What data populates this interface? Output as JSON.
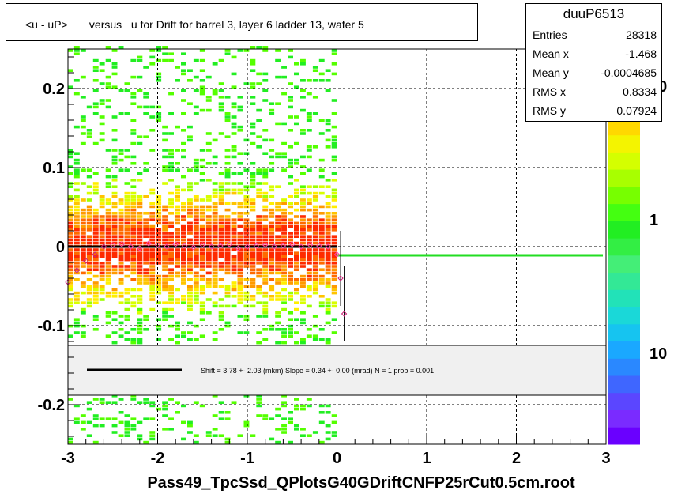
{
  "title": "<u - uP>       versus   u for Drift for barrel 3, layer 6 ladder 13, wafer 5",
  "stats": {
    "name": "duuP6513",
    "rows": [
      {
        "label": "Entries",
        "value": "28318"
      },
      {
        "label": "Mean x",
        "value": "-1.468"
      },
      {
        "label": "Mean y",
        "value": "-0.0004685"
      },
      {
        "label": "RMS x",
        "value": "0.8334"
      },
      {
        "label": "RMS y",
        "value": "0.07924"
      }
    ]
  },
  "fit_legend": "Shift =     3.78 +- 2.03 (mkm) Slope =     0.34 +- 0.00 (mrad)  N = 1 prob = 0.001",
  "xlabel": "Pass49_TpcSsd_QPlotsG40GDriftCNFP25rCut0.5cm.root",
  "colors": {
    "profile_line": "#000000",
    "fit_line": "#22dd22",
    "marker": "#ff44aa"
  },
  "chart_data": {
    "type": "heatmap",
    "xlim": [
      -3,
      3
    ],
    "ylim": [
      -0.25,
      0.25
    ],
    "x_ticks": [
      "-3",
      "-2",
      "-1",
      "0",
      "1",
      "2",
      "3"
    ],
    "y_ticks": [
      "0.2",
      "0.1",
      "0",
      "-0.1",
      "-0.2"
    ],
    "grid": true,
    "populated_x_range": [
      -3,
      0
    ],
    "z_scale": "log",
    "z_tick_labels": [
      "10",
      "1",
      "10"
    ],
    "profile": {
      "x": [
        -3.0,
        -2.9,
        -2.8,
        -2.7,
        -2.6,
        -2.5,
        -2.4,
        -2.3,
        -2.2,
        -2.1,
        -2.0,
        -1.9,
        -1.8,
        -1.7,
        -1.6,
        -1.5,
        -1.4,
        -1.3,
        -1.2,
        -1.1,
        -1.0,
        -0.9,
        -0.8,
        -0.7,
        -0.6,
        -0.5,
        -0.4,
        -0.3,
        -0.2,
        -0.1,
        0.0,
        0.04,
        0.08
      ],
      "y": [
        -0.045,
        -0.03,
        -0.018,
        -0.01,
        0.0,
        0.002,
        0.003,
        0.0,
        -0.002,
        0.004,
        0.002,
        0.0,
        0.003,
        0.001,
        -0.001,
        0.002,
        0.0,
        0.001,
        0.003,
        -0.002,
        0.0,
        0.001,
        0.002,
        0.0,
        0.001,
        0.003,
        0.0,
        0.002,
        0.001,
        0.0,
        -0.01,
        -0.04,
        -0.085
      ]
    },
    "fit_line": {
      "x": [
        0.0,
        3.0
      ],
      "y": [
        -0.011,
        -0.011
      ]
    },
    "profile_line": {
      "x": [
        -3.0,
        0.0
      ],
      "y": [
        0.0,
        0.0
      ]
    }
  }
}
